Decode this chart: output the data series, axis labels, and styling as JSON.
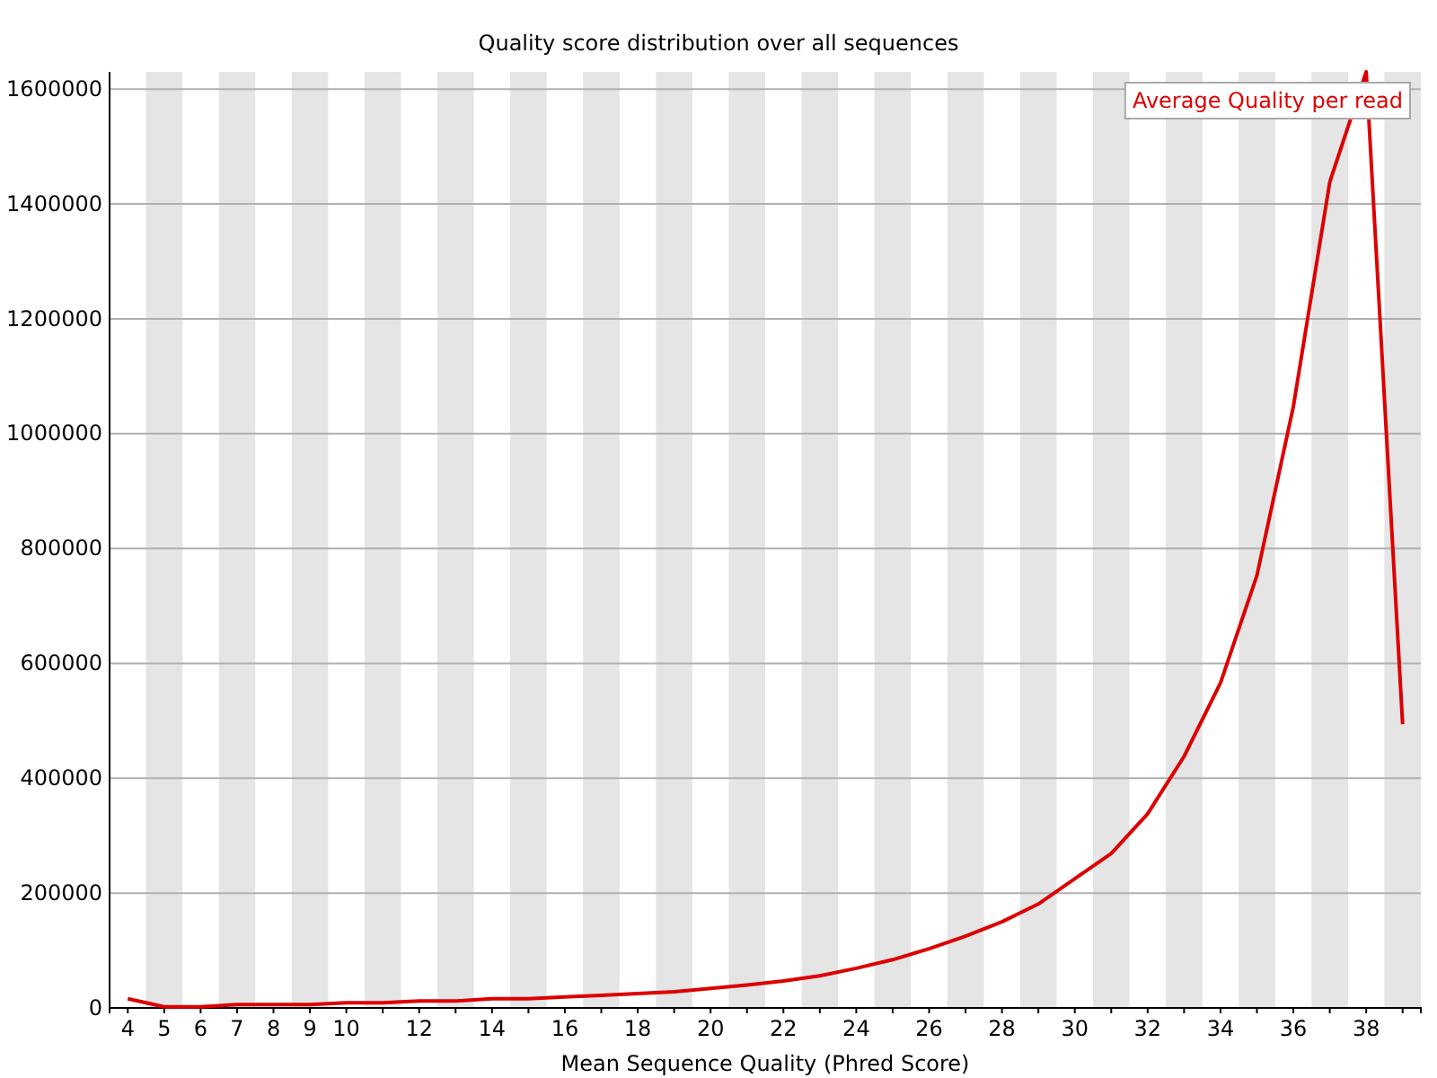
{
  "chart_data": {
    "type": "line",
    "title": "Quality score distribution over all sequences",
    "xlabel": "Mean Sequence Quality (Phred Score)",
    "categories": [
      "4",
      "5",
      "6",
      "7",
      "8",
      "9",
      "10",
      null,
      "12",
      null,
      "14",
      null,
      "16",
      null,
      "18",
      null,
      "20",
      null,
      "22",
      null,
      "24",
      null,
      "26",
      null,
      "28",
      null,
      "30",
      null,
      "32",
      null,
      "34",
      null,
      "36",
      null,
      "38",
      null
    ],
    "series": [
      {
        "name": "Average Quality per read",
        "color": "#dd0000",
        "values": [
          16000,
          2000,
          2000,
          6000,
          6000,
          6000,
          9000,
          9000,
          12000,
          12000,
          16000,
          16000,
          19000,
          22000,
          25000,
          28000,
          34000,
          40000,
          47000,
          56000,
          69000,
          84000,
          103000,
          125000,
          150000,
          181000,
          225000,
          269000,
          338000,
          438000,
          566000,
          753000,
          1047000,
          1438000,
          1630000,
          494000
        ]
      }
    ],
    "ylim": [
      0,
      1630000
    ],
    "yticks": [
      0,
      200000,
      400000,
      600000,
      800000,
      1000000,
      1200000,
      1400000,
      1600000
    ],
    "grid": "y",
    "legend": "top right",
    "marker": "none",
    "line_style": "solid"
  }
}
